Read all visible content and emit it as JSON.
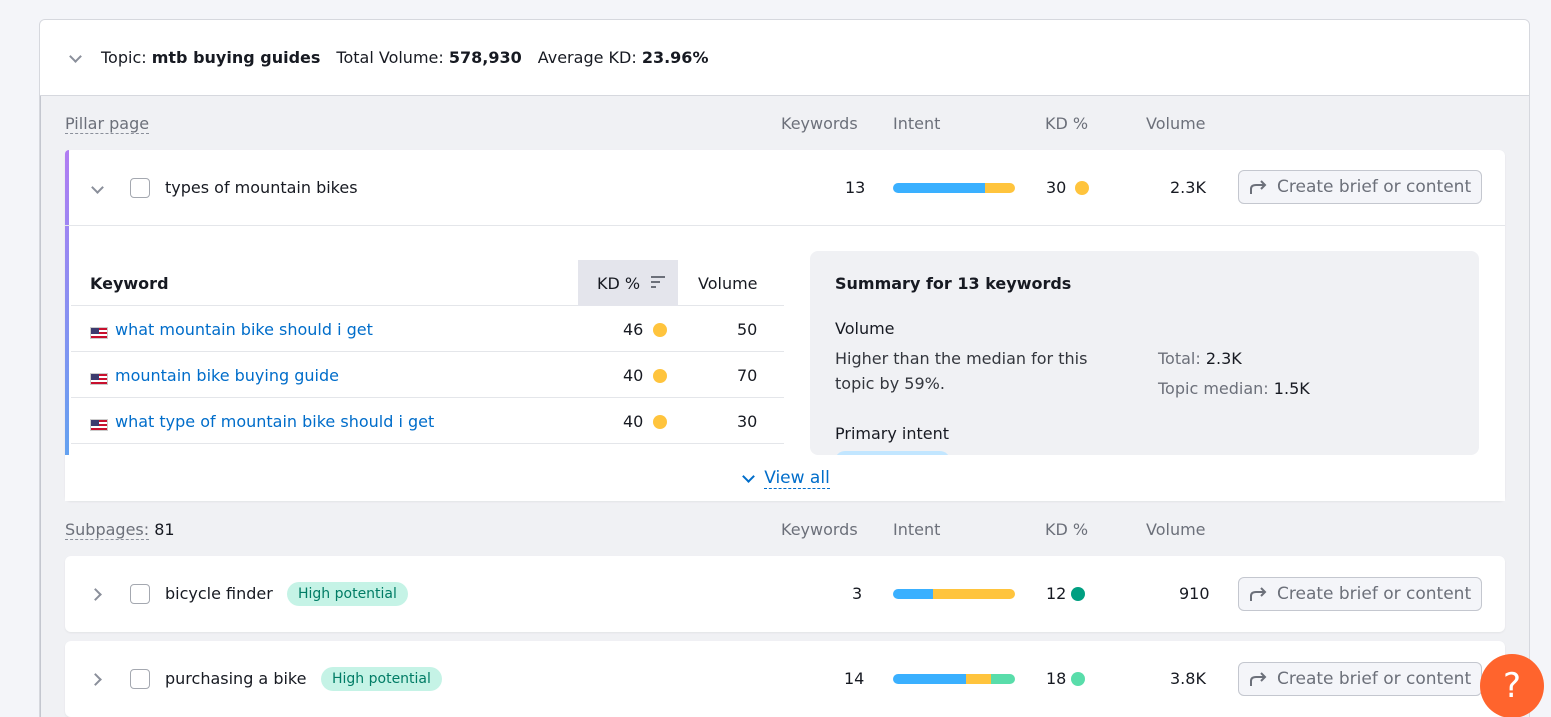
{
  "topic": {
    "label": "Topic:",
    "name": "mtb buying guides",
    "total_volume_label": "Total Volume:",
    "total_volume": "578,930",
    "avg_kd_label": "Average KD:",
    "avg_kd": "23.96%"
  },
  "columns": {
    "keywords": "Keywords",
    "intent": "Intent",
    "kd": "KD %",
    "volume": "Volume"
  },
  "pillar": {
    "section_label": "Pillar page",
    "title": "types of mountain bikes",
    "keywords": "13",
    "kd": "30",
    "volume": "2.3K",
    "intent_split": [
      0.75,
      0.25
    ],
    "button_label": "Create brief or content",
    "table": {
      "header_keyword": "Keyword",
      "header_kd": "KD %",
      "header_volume": "Volume",
      "rows": [
        {
          "keyword": "what mountain bike should i get",
          "kd": "46",
          "volume": "50"
        },
        {
          "keyword": "mountain bike buying guide",
          "kd": "40",
          "volume": "70"
        },
        {
          "keyword": "what type of mountain bike should i get",
          "kd": "40",
          "volume": "30"
        }
      ]
    },
    "summary": {
      "title": "Summary for 13 keywords",
      "volume_heading": "Volume",
      "volume_text_1": "Higher than the median for this",
      "volume_text_2": "topic by 59%.",
      "total_label": "Total:",
      "total_value": "2.3K",
      "median_label": "Topic median:",
      "median_value": "1.5K",
      "intent_heading": "Primary intent"
    },
    "view_all": "View all"
  },
  "subpages": {
    "label": "Subpages:",
    "count": "81",
    "items": [
      {
        "title": "bicycle finder",
        "badge": "High potential",
        "keywords": "3",
        "kd": "12",
        "volume": "910",
        "button_label": "Create brief or content",
        "intent_split": [
          0.33,
          0.67
        ]
      },
      {
        "title": "purchasing a bike",
        "badge": "High potential",
        "keywords": "14",
        "kd": "18",
        "volume": "3.8K",
        "button_label": "Create brief or content",
        "intent_split": [
          0.6,
          0.2,
          0.2
        ]
      }
    ]
  },
  "help": {
    "label": "?"
  },
  "colors": {
    "informational": "#3ab0ff",
    "commercial": "#ffc43d",
    "transactional": "#59ddaa",
    "kd_yellow": "#ffc43d",
    "kd_dark_green": "#009f81",
    "kd_light_green": "#59ddaa"
  }
}
